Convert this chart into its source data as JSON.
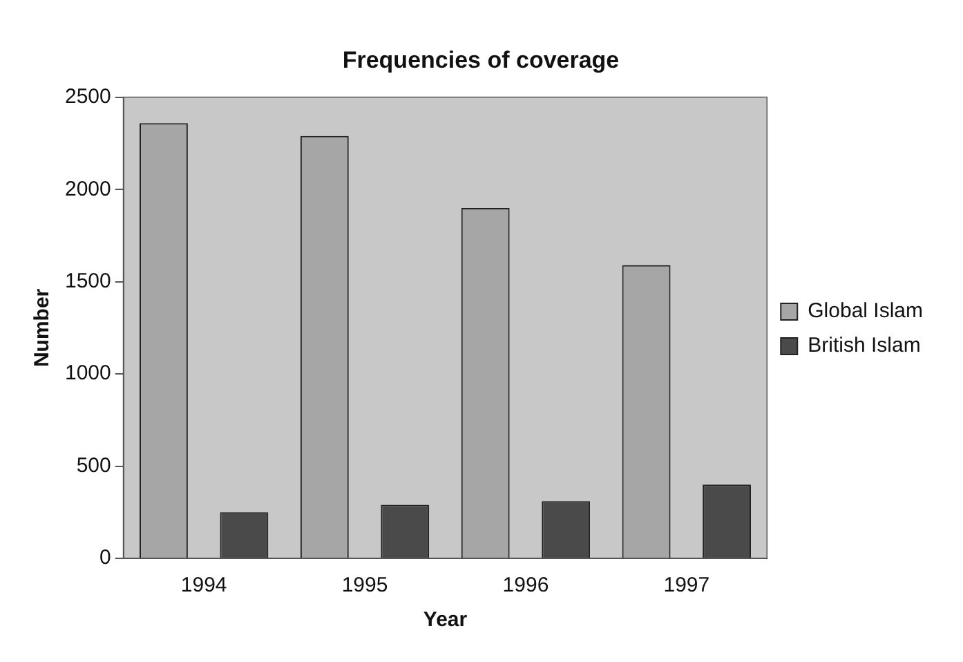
{
  "chart_data": {
    "type": "bar",
    "title": "Frequencies of coverage",
    "xlabel": "Year",
    "ylabel": "Number",
    "categories": [
      "1994",
      "1995",
      "1996",
      "1997"
    ],
    "series": [
      {
        "name": "Global Islam",
        "color": "#a6a6a6",
        "values": [
          2360,
          2290,
          1900,
          1590
        ]
      },
      {
        "name": "British Islam",
        "color": "#4a4a4a",
        "values": [
          250,
          290,
          310,
          400
        ]
      }
    ],
    "ylim": [
      0,
      2500
    ],
    "yticks": [
      0,
      500,
      1000,
      1500,
      2000,
      2500
    ],
    "grid": false,
    "legend": "right"
  }
}
